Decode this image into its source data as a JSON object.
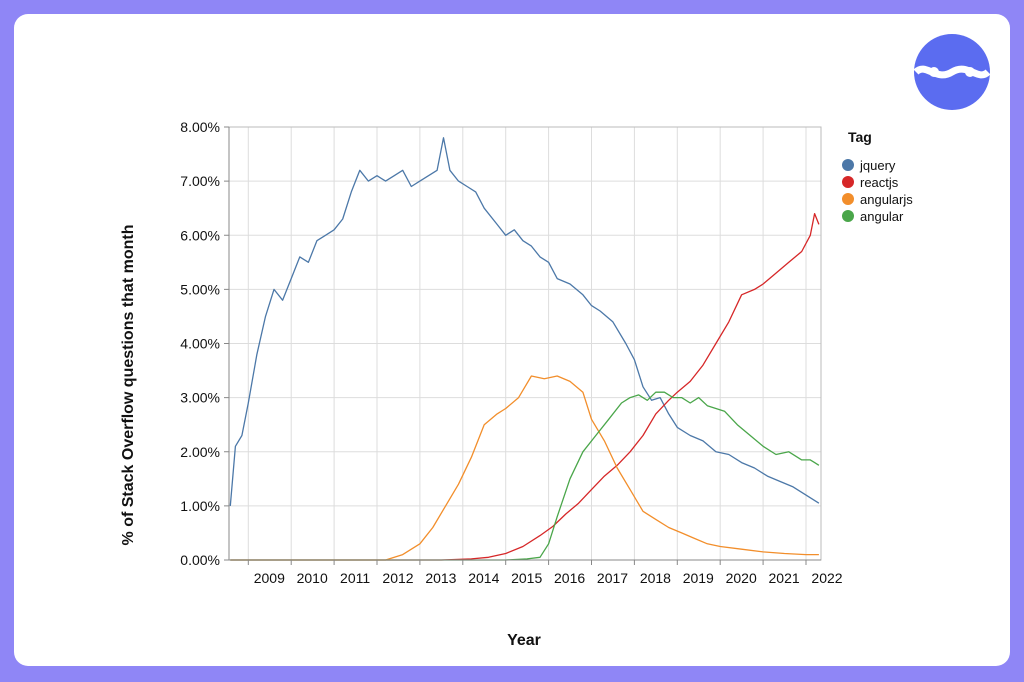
{
  "page": {
    "background": "#8f86f6",
    "card_background": "#ffffff",
    "logo_color": "#5b6cf0"
  },
  "logo": {
    "icon": "brand-logo-icon"
  },
  "chart_data": {
    "type": "line",
    "title": "",
    "xlabel": "Year",
    "ylabel": "% of Stack Overflow questions that month",
    "xlim": [
      2008.55,
      2022.35
    ],
    "ylim": [
      0,
      8
    ],
    "x_ticks": [
      "2009",
      "2010",
      "2011",
      "2012",
      "2013",
      "2014",
      "2015",
      "2016",
      "2017",
      "2018",
      "2019",
      "2020",
      "2021",
      "2022"
    ],
    "y_ticks": [
      "0.00%",
      "1.00%",
      "2.00%",
      "3.00%",
      "4.00%",
      "5.00%",
      "6.00%",
      "7.00%",
      "8.00%"
    ],
    "grid": true,
    "legend": {
      "title": "Tag",
      "position": "right"
    },
    "series": [
      {
        "name": "jquery",
        "color": "#4c78a8",
        "x": [
          2008.58,
          2008.7,
          2008.85,
          2009.0,
          2009.2,
          2009.4,
          2009.6,
          2009.8,
          2010.0,
          2010.2,
          2010.4,
          2010.6,
          2010.8,
          2011.0,
          2011.2,
          2011.4,
          2011.6,
          2011.8,
          2012.0,
          2012.2,
          2012.4,
          2012.6,
          2012.8,
          2013.0,
          2013.2,
          2013.4,
          2013.55,
          2013.7,
          2013.9,
          2014.1,
          2014.3,
          2014.5,
          2014.8,
          2015.0,
          2015.2,
          2015.4,
          2015.6,
          2015.8,
          2016.0,
          2016.2,
          2016.5,
          2016.8,
          2017.0,
          2017.2,
          2017.5,
          2017.8,
          2018.0,
          2018.2,
          2018.4,
          2018.6,
          2018.8,
          2019.0,
          2019.3,
          2019.6,
          2019.9,
          2020.2,
          2020.5,
          2020.8,
          2021.1,
          2021.4,
          2021.7,
          2022.0,
          2022.3
        ],
        "values": [
          1.0,
          2.1,
          2.3,
          2.9,
          3.8,
          4.5,
          5.0,
          4.8,
          5.2,
          5.6,
          5.5,
          5.9,
          6.0,
          6.1,
          6.3,
          6.8,
          7.2,
          7.0,
          7.1,
          7.0,
          7.1,
          7.2,
          6.9,
          7.0,
          7.1,
          7.2,
          7.8,
          7.2,
          7.0,
          6.9,
          6.8,
          6.5,
          6.2,
          6.0,
          6.1,
          5.9,
          5.8,
          5.6,
          5.5,
          5.2,
          5.1,
          4.9,
          4.7,
          4.6,
          4.4,
          4.0,
          3.7,
          3.2,
          2.95,
          3.0,
          2.7,
          2.45,
          2.3,
          2.2,
          2.0,
          1.95,
          1.8,
          1.7,
          1.55,
          1.45,
          1.35,
          1.2,
          1.05
        ]
      },
      {
        "name": "reactjs",
        "color": "#d62728",
        "x": [
          2008.58,
          2013.5,
          2014.2,
          2014.6,
          2015.0,
          2015.4,
          2015.8,
          2016.1,
          2016.4,
          2016.7,
          2017.0,
          2017.3,
          2017.6,
          2017.9,
          2018.2,
          2018.5,
          2018.8,
          2019.0,
          2019.3,
          2019.6,
          2019.9,
          2020.2,
          2020.5,
          2020.8,
          2021.0,
          2021.3,
          2021.6,
          2021.9,
          2022.1,
          2022.2,
          2022.3
        ],
        "values": [
          0.0,
          0.0,
          0.02,
          0.05,
          0.12,
          0.25,
          0.45,
          0.62,
          0.85,
          1.05,
          1.3,
          1.55,
          1.75,
          2.0,
          2.3,
          2.7,
          2.95,
          3.1,
          3.3,
          3.6,
          4.0,
          4.4,
          4.9,
          5.0,
          5.1,
          5.3,
          5.5,
          5.7,
          6.0,
          6.4,
          6.2
        ]
      },
      {
        "name": "angularjs",
        "color": "#f28e2b",
        "x": [
          2008.58,
          2012.2,
          2012.6,
          2013.0,
          2013.3,
          2013.6,
          2013.9,
          2014.2,
          2014.5,
          2014.8,
          2015.0,
          2015.3,
          2015.6,
          2015.9,
          2016.2,
          2016.5,
          2016.8,
          2017.0,
          2017.3,
          2017.6,
          2017.9,
          2018.2,
          2018.5,
          2018.8,
          2019.1,
          2019.4,
          2019.7,
          2020.0,
          2020.5,
          2021.0,
          2021.5,
          2022.0,
          2022.3
        ],
        "values": [
          0.0,
          0.0,
          0.1,
          0.3,
          0.6,
          1.0,
          1.4,
          1.9,
          2.5,
          2.7,
          2.8,
          3.0,
          3.4,
          3.35,
          3.4,
          3.3,
          3.1,
          2.6,
          2.2,
          1.7,
          1.3,
          0.9,
          0.75,
          0.6,
          0.5,
          0.4,
          0.3,
          0.25,
          0.2,
          0.15,
          0.12,
          0.1,
          0.1
        ]
      },
      {
        "name": "angular",
        "color": "#4aa64a",
        "x": [
          2008.58,
          2015.0,
          2015.5,
          2015.8,
          2016.0,
          2016.2,
          2016.5,
          2016.8,
          2017.1,
          2017.4,
          2017.7,
          2017.9,
          2018.1,
          2018.3,
          2018.5,
          2018.7,
          2018.9,
          2019.1,
          2019.3,
          2019.5,
          2019.7,
          2019.9,
          2020.1,
          2020.4,
          2020.7,
          2021.0,
          2021.3,
          2021.6,
          2021.9,
          2022.1,
          2022.2,
          2022.3
        ],
        "values": [
          0.0,
          0.0,
          0.02,
          0.05,
          0.3,
          0.8,
          1.5,
          2.0,
          2.3,
          2.6,
          2.9,
          3.0,
          3.05,
          2.95,
          3.1,
          3.1,
          3.0,
          3.0,
          2.9,
          3.0,
          2.85,
          2.8,
          2.75,
          2.5,
          2.3,
          2.1,
          1.95,
          2.0,
          1.85,
          1.85,
          1.8,
          1.75
        ]
      }
    ]
  }
}
